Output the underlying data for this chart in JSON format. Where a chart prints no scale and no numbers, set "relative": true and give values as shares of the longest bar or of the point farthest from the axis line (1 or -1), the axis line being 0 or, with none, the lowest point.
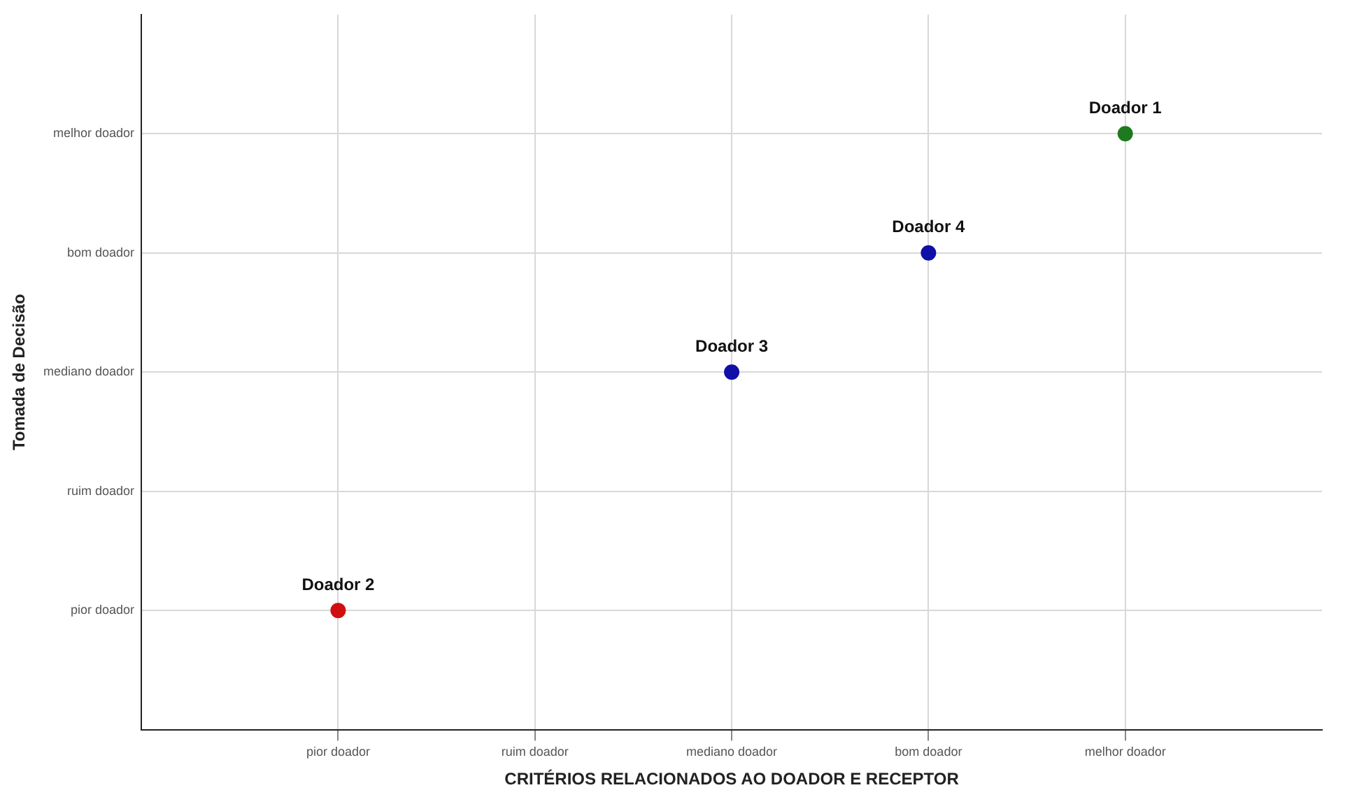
{
  "chart_data": {
    "type": "scatter",
    "xlabel": "CRITÉRIOS RELACIONADOS AO DOADOR E RECEPTOR",
    "categories": [
      "pior doador",
      "ruim doador",
      "mediano doador",
      "bom doador",
      "melhor doador"
    ],
    "y_categories": [
      "melhor doador",
      "bom doador",
      "mediano doador",
      "ruim doador",
      "pior doador"
    ],
    "relative": true,
    "grid": true,
    "legend": false,
    "marker": "circle",
    "values": [
      0.2,
      null,
      0.6,
      0.8,
      1
    ],
    "colors": [
      "#d01010",
      null,
      "#1010a8",
      "#1010a8",
      "#1e7a1e"
    ],
    "annotations": [
      "Tomada de Decisão",
      {
        "text": "Doador 1",
        "x": "melhor doador",
        "y": 1
      },
      {
        "text": "Doador 2",
        "x": "pior doador",
        "y": 0.2
      },
      {
        "text": "Doador 3",
        "x": "mediano doador",
        "y": 0.6
      },
      {
        "text": "Doador 4",
        "x": "bom doador",
        "y": 0.8
      }
    ]
  }
}
